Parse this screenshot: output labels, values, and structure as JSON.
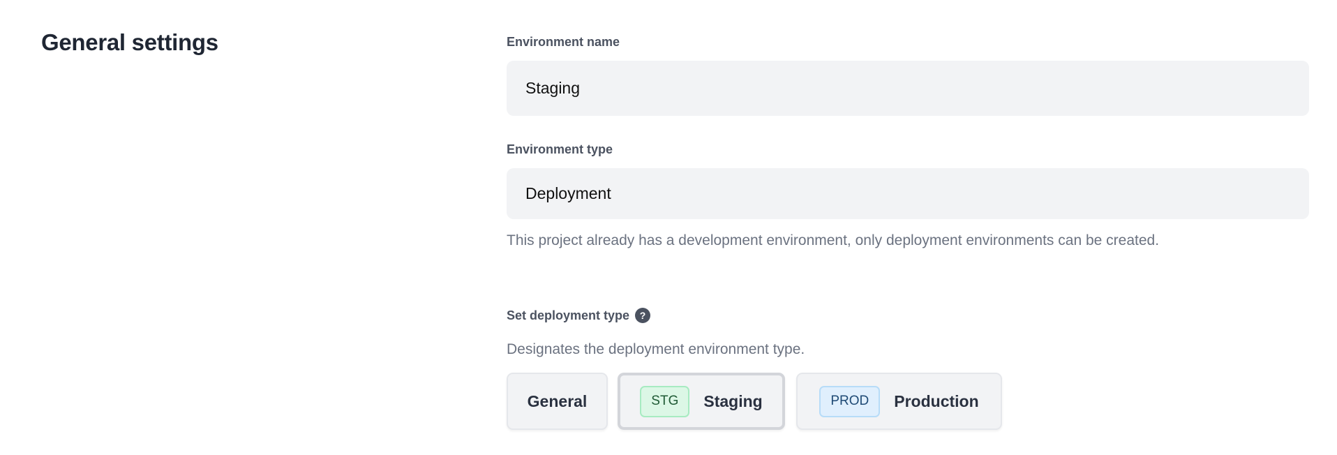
{
  "section": {
    "title": "General settings"
  },
  "environment_name": {
    "label": "Environment name",
    "value": "Staging"
  },
  "environment_type": {
    "label": "Environment type",
    "value": "Deployment",
    "help": "This project already has a development environment, only deployment environments can be created."
  },
  "deployment_type": {
    "label": "Set deployment type",
    "help_icon": "question-circle-icon",
    "description": "Designates the deployment environment type.",
    "selected": "Staging",
    "options": [
      {
        "label": "General",
        "badge": null
      },
      {
        "label": "Staging",
        "badge": "STG",
        "badge_color": "#dcf7e6"
      },
      {
        "label": "Production",
        "badge": "PROD",
        "badge_color": "#e0effd"
      }
    ]
  }
}
